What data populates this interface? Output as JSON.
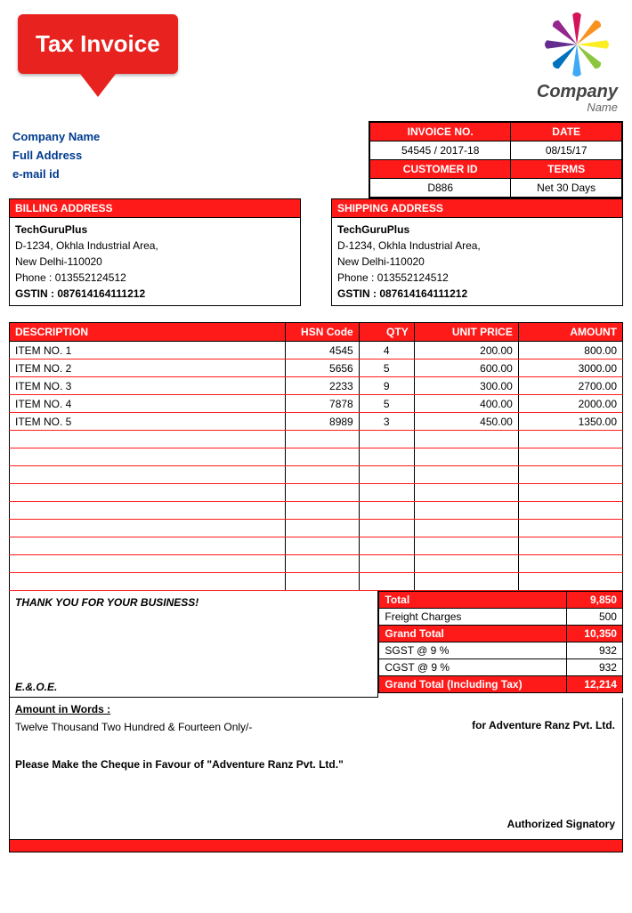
{
  "colors": {
    "accent": "#ff1a1a",
    "badge": "#e8231f",
    "company_text": "#003b8e",
    "border": "#000000",
    "row_underline": "#ff1a1a"
  },
  "badge_text": "Tax Invoice",
  "logo": {
    "top": "Company",
    "bottom": "Name"
  },
  "meta": {
    "invoice_no_label": "INVOICE NO.",
    "date_label": "DATE",
    "invoice_no": "54545 / 2017-18",
    "date": "08/15/17",
    "customer_id_label": "CUSTOMER ID",
    "terms_label": "TERMS",
    "customer_id": "D886",
    "terms": "Net 30 Days"
  },
  "company": {
    "name": "Company Name",
    "address": "Full Address",
    "email": "e-mail id"
  },
  "billing": {
    "title": "BILLING ADDRESS",
    "name": "TechGuruPlus",
    "line1": "D-1234, Okhla Industrial Area,",
    "line2": "New Delhi-110020",
    "phone": "Phone : 013552124512",
    "gstin": "GSTIN : 087614164111212"
  },
  "shipping": {
    "title": "SHIPPING ADDRESS",
    "name": "TechGuruPlus",
    "line1": "D-1234, Okhla Industrial Area,",
    "line2": "New Delhi-110020",
    "phone": "Phone : 013552124512",
    "gstin": "GSTIN : 087614164111212"
  },
  "table": {
    "headers": {
      "desc": "DESCRIPTION",
      "hsn": "HSN Code",
      "qty": "QTY",
      "price": "UNIT PRICE",
      "amount": "AMOUNT"
    },
    "rows": [
      {
        "desc": "ITEM NO. 1",
        "hsn": "4545",
        "qty": "4",
        "price": "200.00",
        "amount": "800.00"
      },
      {
        "desc": "ITEM NO. 2",
        "hsn": "5656",
        "qty": "5",
        "price": "600.00",
        "amount": "3000.00"
      },
      {
        "desc": "ITEM NO. 3",
        "hsn": "2233",
        "qty": "9",
        "price": "300.00",
        "amount": "2700.00"
      },
      {
        "desc": "ITEM NO. 4",
        "hsn": "7878",
        "qty": "5",
        "price": "400.00",
        "amount": "2000.00"
      },
      {
        "desc": "ITEM NO. 5",
        "hsn": "8989",
        "qty": "3",
        "price": "450.00",
        "amount": "1350.00"
      }
    ],
    "blank_rows": 9
  },
  "thank_you": "THANK YOU FOR YOUR BUSINESS!",
  "eoe": "E.&.O.E.",
  "totals": {
    "total_label": "Total",
    "total": "9,850",
    "freight_label": "Freight Charges",
    "freight": "500",
    "grand_label": "Grand Total",
    "grand": "10,350",
    "sgst_label": "SGST @ 9 %",
    "sgst": "932",
    "cgst_label": "CGST @ 9 %",
    "cgst": "932",
    "grand_tax_label": "Grand Total (Including Tax)",
    "grand_tax": "12,214"
  },
  "words": {
    "title": "Amount in Words :",
    "text": "Twelve Thousand Two Hundred & Fourteen Only/-",
    "cheque": "Please Make the Cheque in Favour of \"Adventure Ranz Pvt. Ltd.\"",
    "for": "for Adventure Ranz Pvt. Ltd.",
    "sig": "Authorized Signatory"
  }
}
